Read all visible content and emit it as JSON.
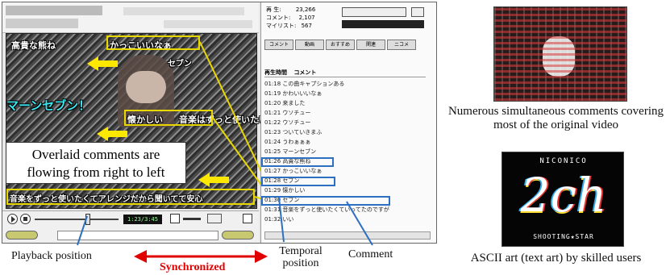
{
  "player": {
    "stats": [
      {
        "label": "再 生:",
        "value": "23,266"
      },
      {
        "label": "コメント:",
        "value": "2,107"
      },
      {
        "label": "マイリスト:",
        "value": "567"
      }
    ],
    "time_display": "1:23/3:45",
    "side_tabs": [
      "コメント",
      "動画",
      "おすすめ",
      "関連",
      "ニコメ"
    ],
    "comment_list_header": {
      "time": "再生時間",
      "comment": "コメント"
    },
    "comment_rows": [
      {
        "time": "01:18",
        "text": "この曲キャプションある"
      },
      {
        "time": "01:19",
        "text": "かわいいいなぁ"
      },
      {
        "time": "01:20",
        "text": "来ました"
      },
      {
        "time": "01:21",
        "text": "ウソチュー"
      },
      {
        "time": "01:22",
        "text": "ウソチュー"
      },
      {
        "time": "01:23",
        "text": "ついていきまふ"
      },
      {
        "time": "01:24",
        "text": "うわぁぁぁ"
      },
      {
        "time": "01:25",
        "text": "マーンセブン"
      },
      {
        "time": "01:26",
        "text": "高貴な熊ね"
      },
      {
        "time": "01:27",
        "text": "かっこいいなぁ"
      },
      {
        "time": "01:28",
        "text": "セブン"
      },
      {
        "time": "01:29",
        "text": "懐かしい"
      },
      {
        "time": "01:30",
        "text": "セブン"
      },
      {
        "time": "01:31",
        "text": "音楽をずっと使いたくていってたのですが"
      },
      {
        "time": "01:32",
        "text": "いい"
      }
    ]
  },
  "video_comments": {
    "c1": "高貴な熊ね",
    "c2": "かっこいいなぁ",
    "c3": "セブン",
    "c4": "マーンセブン！",
    "c5": "懐かしい",
    "c6": "音楽はずっと使いたい",
    "c7": "音楽をずっと使いたくてアレンジだから聞いてて安心"
  },
  "annotations": {
    "overlay_caption": "Overlaid comments are flowing from right to left",
    "playback_position": "Playback position",
    "synchronized": "Synchronized",
    "temporal_position": "Temporal position",
    "comment": "Comment",
    "numerous_caption": "Numerous simultaneous comments covering most of the original video",
    "ascii_caption": "ASCII art (text art) by skilled users"
  },
  "ascii_art": {
    "top": "NICONICO",
    "center": "2ch",
    "bottom": "SHOOTING★STAR"
  },
  "colors": {
    "highlight_yellow": "#e8d800",
    "highlight_blue": "#2d6fc0",
    "sync_red": "#e00000"
  }
}
